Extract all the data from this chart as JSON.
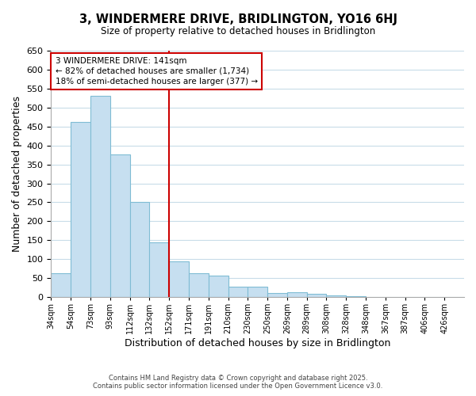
{
  "title": "3, WINDERMERE DRIVE, BRIDLINGTON, YO16 6HJ",
  "subtitle": "Size of property relative to detached houses in Bridlington",
  "xlabel": "Distribution of detached houses by size in Bridlington",
  "ylabel": "Number of detached properties",
  "bar_values": [
    63,
    463,
    530,
    377,
    252,
    144,
    94,
    63,
    57,
    27,
    28,
    10,
    12,
    8,
    4,
    3
  ],
  "categories": [
    "34sqm",
    "54sqm",
    "73sqm",
    "93sqm",
    "112sqm",
    "132sqm",
    "152sqm",
    "171sqm",
    "191sqm",
    "210sqm",
    "230sqm",
    "250sqm",
    "269sqm",
    "289sqm",
    "308sqm",
    "328sqm",
    "348sqm",
    "367sqm",
    "387sqm",
    "406sqm",
    "426sqm"
  ],
  "bar_color": "#c6dff0",
  "bar_edge_color": "#7fbcd4",
  "vline_x": 6,
  "vline_color": "#cc0000",
  "ylim": [
    0,
    650
  ],
  "yticks": [
    0,
    50,
    100,
    150,
    200,
    250,
    300,
    350,
    400,
    450,
    500,
    550,
    600,
    650
  ],
  "annotation_title": "3 WINDERMERE DRIVE: 141sqm",
  "annotation_line1": "← 82% of detached houses are smaller (1,734)",
  "annotation_line2": "18% of semi-detached houses are larger (377) →",
  "annotation_box_color": "#ffffff",
  "annotation_box_edge": "#cc0000",
  "footnote1": "Contains HM Land Registry data © Crown copyright and database right 2025.",
  "footnote2": "Contains public sector information licensed under the Open Government Licence v3.0.",
  "background_color": "#ffffff",
  "grid_color": "#c8dce8"
}
